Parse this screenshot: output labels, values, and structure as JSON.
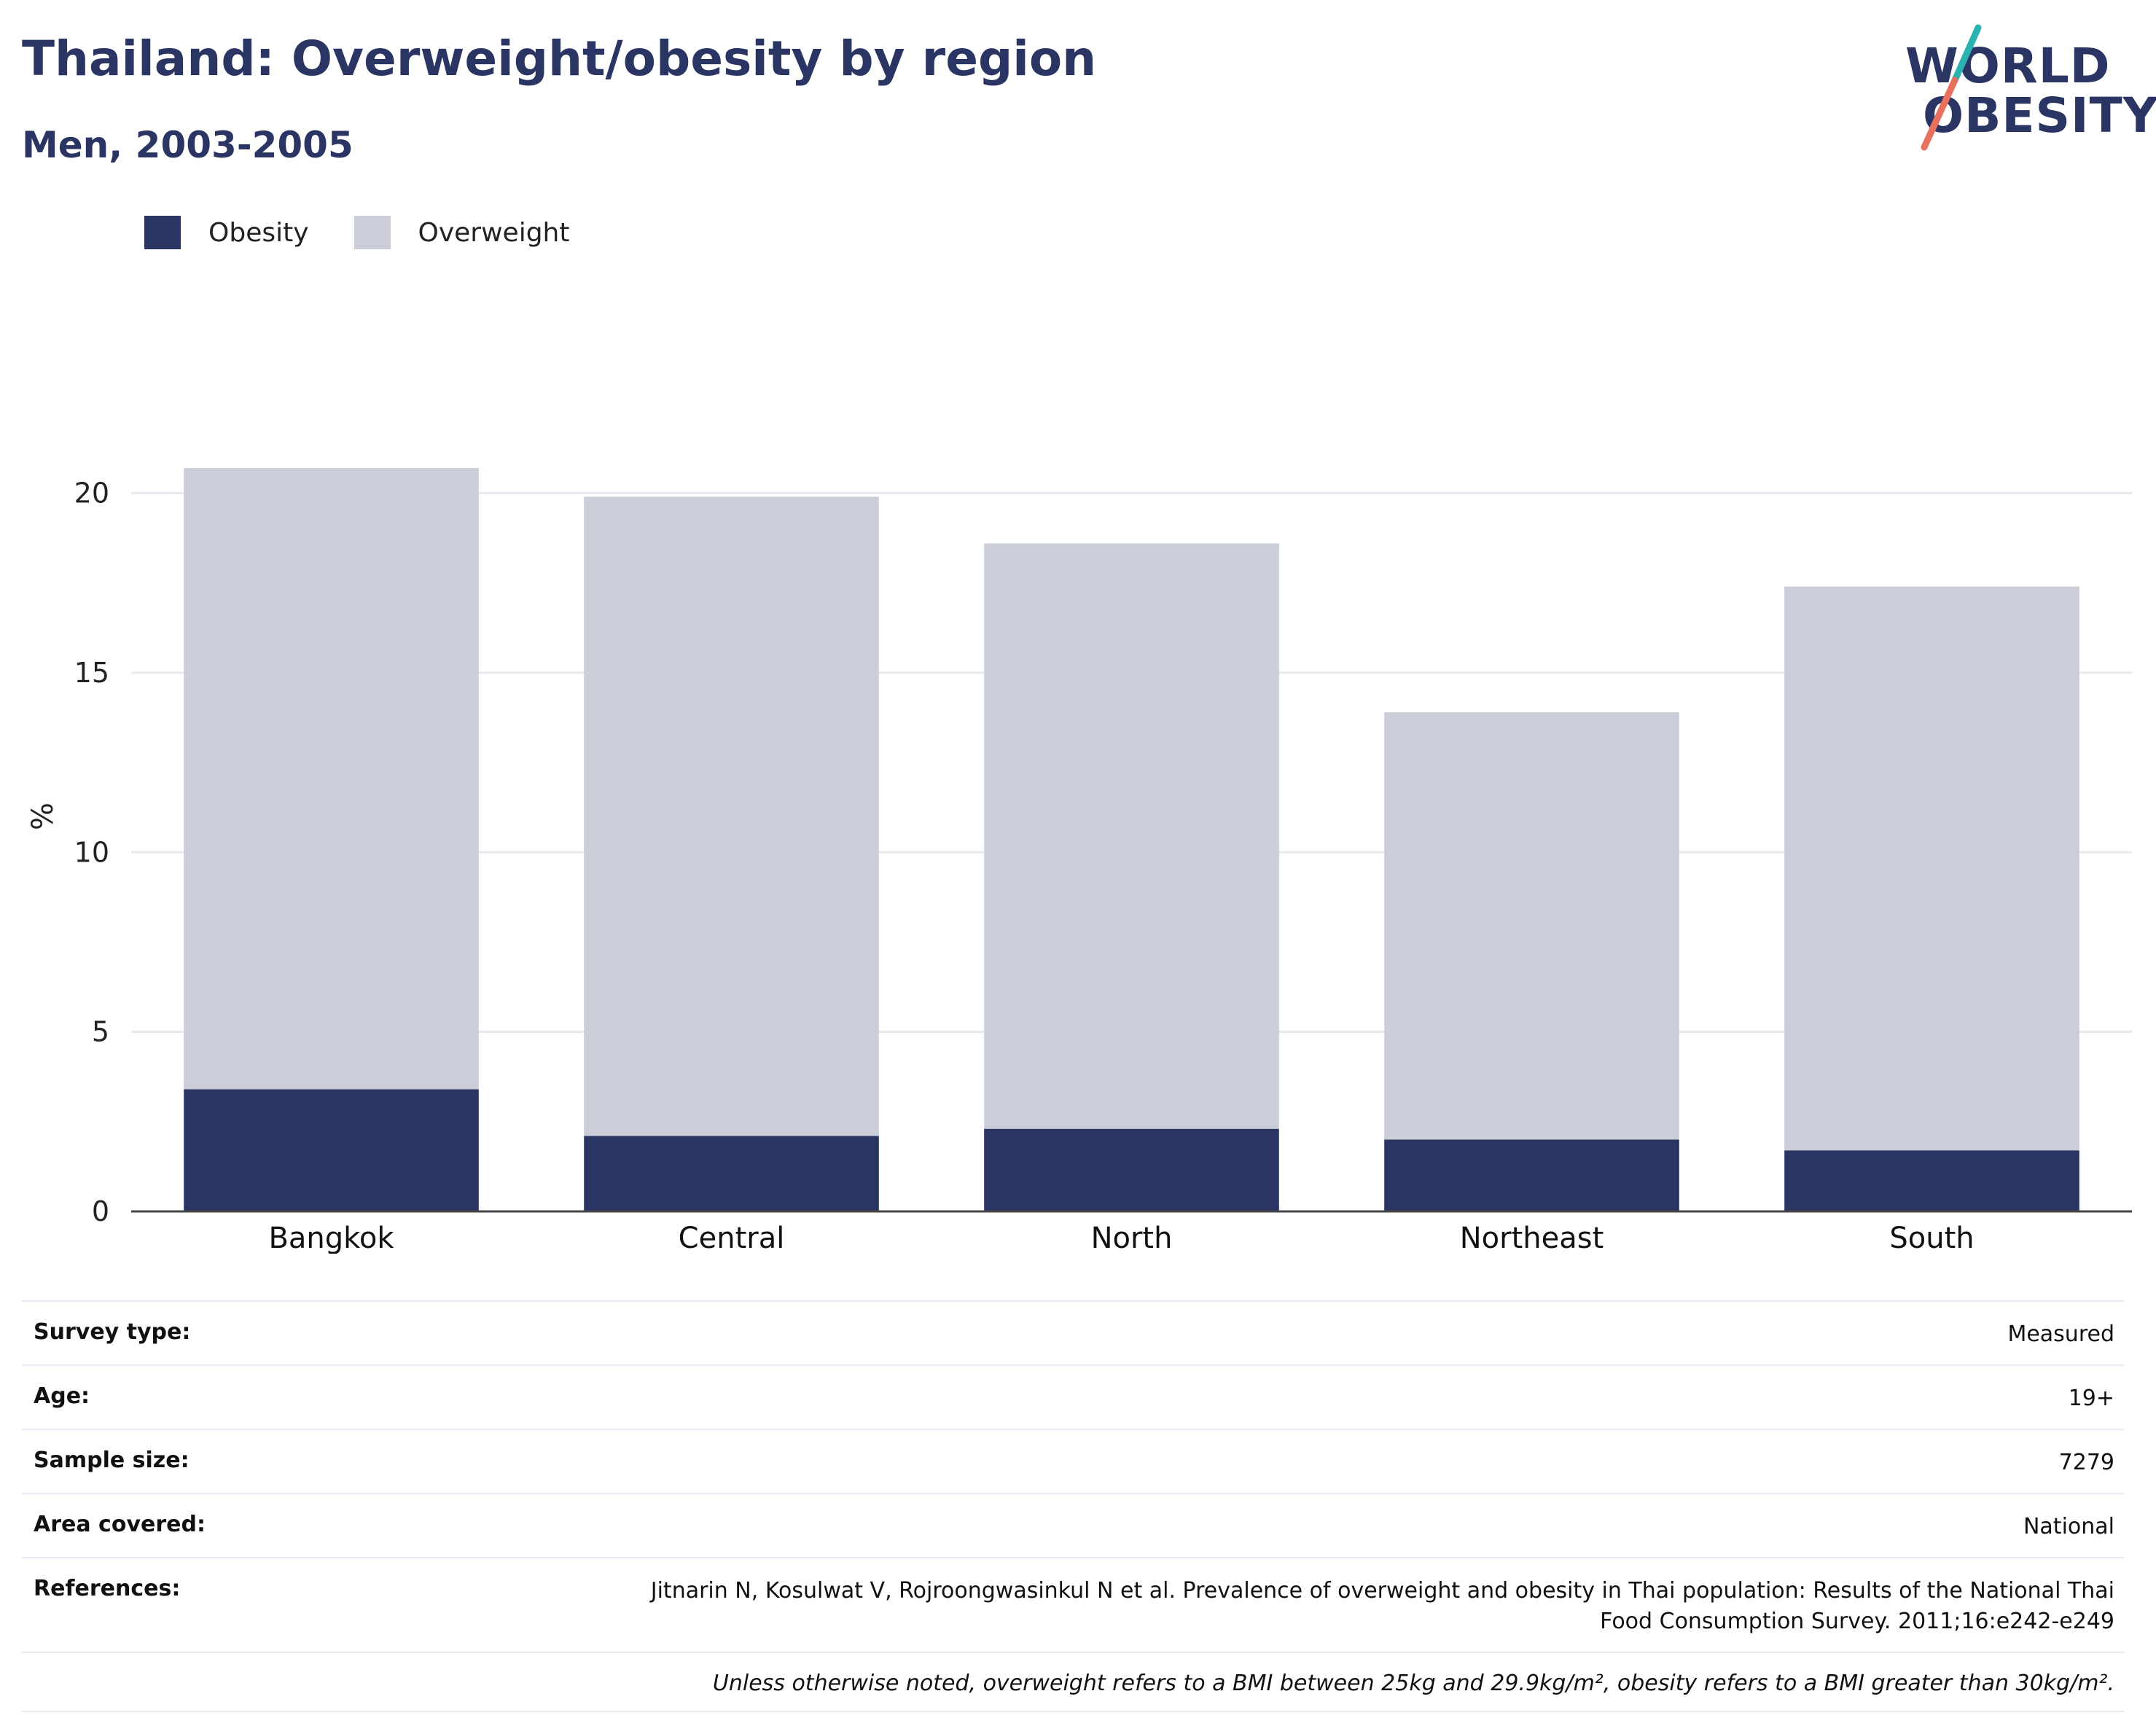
{
  "header": {
    "title": "Thailand: Overweight/obesity by region",
    "subtitle": "Men, 2003-2005"
  },
  "logo": {
    "line1": "WORLD",
    "line2": "OBESITY"
  },
  "legend": [
    {
      "label": "Obesity",
      "color": "#2a3563"
    },
    {
      "label": "Overweight",
      "color": "#cbcdd8"
    }
  ],
  "chart_data": {
    "type": "bar",
    "stacked": true,
    "categories": [
      "Bangkok",
      "Central",
      "North",
      "Northeast",
      "South"
    ],
    "series": [
      {
        "name": "Obesity",
        "color": "#2a3563",
        "values": [
          3.4,
          2.1,
          2.3,
          2.0,
          1.7
        ]
      },
      {
        "name": "Overweight",
        "color": "#cbcdd8",
        "values": [
          17.3,
          17.8,
          16.3,
          11.9,
          15.7
        ]
      }
    ],
    "ylabel": "%",
    "xlabel": "",
    "ylim": [
      0,
      22
    ],
    "yticks": [
      0,
      5,
      10,
      15,
      20
    ],
    "grid": true,
    "legend_position": "top-left"
  },
  "info": {
    "rows": [
      {
        "label": "Survey type:",
        "value": "Measured"
      },
      {
        "label": "Age:",
        "value": "19+"
      },
      {
        "label": "Sample size:",
        "value": "7279"
      },
      {
        "label": "Area covered:",
        "value": "National"
      }
    ],
    "references_label": "References:",
    "references_line1": "Jitnarin N, Kosulwat V, Rojroongwasinkul N et al. Prevalence of overweight and obesity in Thai population: Results of the National Thai",
    "references_line2": "Food Consumption Survey. 2011;16:e242-e249",
    "note": "Unless otherwise noted, overweight refers to a BMI between 25kg and 29.9kg/m², obesity refers to a BMI greater than 30kg/m²."
  },
  "colors": {
    "brand_navy": "#2a3563",
    "overweight_grey": "#cbcdd8",
    "logo_teal": "#2bb3b1",
    "logo_coral": "#e8705f"
  }
}
